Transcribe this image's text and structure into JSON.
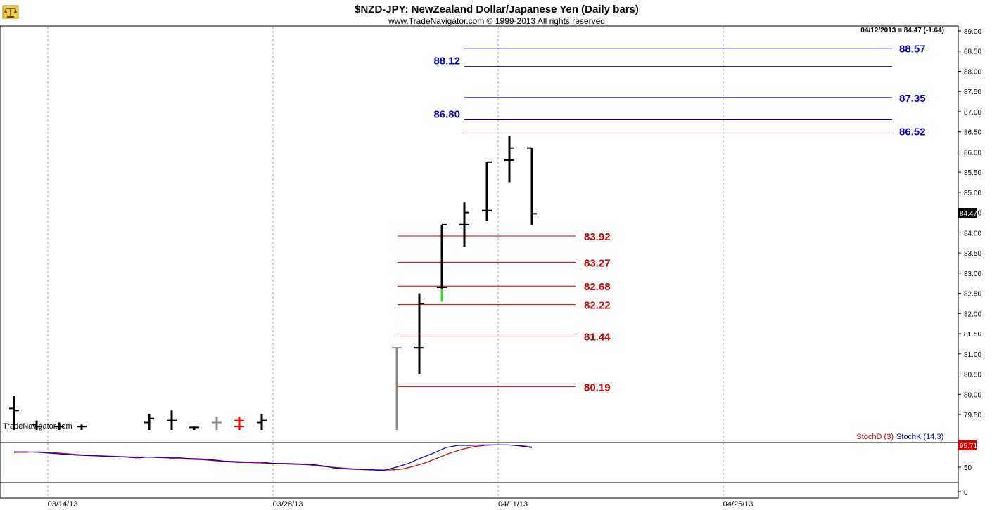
{
  "header": {
    "title": "$NZD-JPY:  NewZealand Dollar/Japanese Yen  (Daily bars)",
    "subtitle": "www.TradeNavigator.com © 1999-2013 All rights reserved",
    "watermark": "TradeNavigator.com",
    "logo_icon": "scale-icon"
  },
  "price_readout": "04/12/2013 = 84.47 (-1.64)",
  "last_price_tag": "84.47",
  "stoch_readout": "95.71",
  "chart_data": {
    "type": "ohlc",
    "price_panel": {
      "ylim": [
        79.1,
        89.1
      ],
      "yticks": [
        "89.00",
        "88.50",
        "88.00",
        "87.50",
        "87.00",
        "86.50",
        "86.00",
        "85.50",
        "85.00",
        "84.50",
        "84.00",
        "83.50",
        "83.00",
        "82.50",
        "82.00",
        "81.50",
        "81.00",
        "80.50",
        "80.00",
        "79.50"
      ],
      "bars": [
        {
          "h": 79.95,
          "l": 79.1,
          "c": 79.6,
          "o": 79.65,
          "color": "#000000"
        },
        {
          "h": 79.35,
          "l": 79.1,
          "c": 79.2,
          "o": 79.25,
          "color": "#000000"
        },
        {
          "h": 79.3,
          "l": 79.1,
          "c": 79.2,
          "o": 79.2,
          "color": "#000000"
        },
        {
          "h": 79.25,
          "l": 79.15,
          "c": 79.2,
          "o": 79.2,
          "color": "#000000"
        },
        {
          "h": 79.45,
          "l": 79.2,
          "c": 79.2,
          "o": 79.2,
          "color": "#ff0000"
        },
        {
          "h": 79.5,
          "l": 79.1,
          "c": 79.4,
          "o": 79.3,
          "color": "#000000"
        },
        {
          "h": 79.6,
          "l": 79.1,
          "c": 79.35,
          "o": 79.35,
          "color": "#000000"
        },
        {
          "h": 79.2,
          "l": 79.15,
          "c": 79.18,
          "o": 79.18,
          "color": "#000000"
        },
        {
          "h": 79.45,
          "l": 79.1,
          "c": 79.3,
          "o": 79.3,
          "color": "#888888"
        },
        {
          "h": 79.4,
          "l": 79.1,
          "c": 79.35,
          "o": 79.35,
          "color": "#ff0000"
        },
        {
          "h": 79.5,
          "l": 79.1,
          "c": 79.35,
          "o": 79.3,
          "color": "#000000"
        },
        {
          "h": 81.15,
          "l": 79.1,
          "c": 81.15,
          "o": 81.15,
          "color": "#888888"
        },
        {
          "h": 81.15,
          "l": 80.5,
          "c": 81.15,
          "o": 81.15,
          "color": "#000000"
        },
        {
          "h": 82.5,
          "l": 80.5,
          "c": 82.25,
          "o": 81.15,
          "color": "#000000"
        },
        {
          "h": 82.7,
          "l": 82.35,
          "c": 82.65,
          "o": 82.65,
          "color": "#000000"
        },
        {
          "h": 84.2,
          "l": 82.3,
          "c": 84.2,
          "o": 82.65,
          "color": "#000000"
        },
        {
          "h": 84.2,
          "l": 83.65,
          "c": 84.2,
          "o": 84.2,
          "color": "#000000"
        },
        {
          "h": 84.75,
          "l": 83.65,
          "c": 84.5,
          "o": 84.2,
          "color": "#000000"
        },
        {
          "h": 84.55,
          "l": 84.3,
          "c": 84.55,
          "o": 84.55,
          "color": "#000000"
        },
        {
          "h": 85.75,
          "l": 84.3,
          "c": 85.75,
          "o": 84.55,
          "color": "#000000"
        },
        {
          "h": 85.8,
          "l": 85.8,
          "c": 85.8,
          "o": 85.8,
          "color": "#000000"
        },
        {
          "h": 86.4,
          "l": 85.25,
          "c": 86.1,
          "o": 85.8,
          "color": "#000000"
        },
        {
          "h": 86.1,
          "l": 84.2,
          "c": 84.47,
          "o": 86.1,
          "color": "#000000"
        }
      ],
      "resistance_levels": [
        "86.52",
        "86.80",
        "87.35",
        "88.12",
        "88.57"
      ],
      "support_levels": [
        "83.92",
        "83.27",
        "82.68",
        "82.22",
        "81.44",
        "80.19"
      ],
      "resistance_color": "#0000cc",
      "support_color": "#cc0000"
    },
    "stoch_panel": {
      "legend": [
        {
          "name": "StochD (3)",
          "color": "#cc0000"
        },
        {
          "name": "StochK (14,3)",
          "color": "#0000cc"
        }
      ],
      "ylim": [
        0,
        100
      ],
      "yticks": [
        "50",
        "0"
      ],
      "stoch_d": [
        82,
        82,
        83,
        82,
        80,
        78,
        76,
        75,
        74,
        73,
        72,
        72,
        71,
        70,
        68,
        67,
        66,
        64,
        62,
        60,
        60,
        59,
        58,
        57,
        56,
        55,
        52,
        50,
        48,
        46,
        45,
        44,
        44,
        46,
        52,
        60,
        70,
        80,
        88,
        94,
        97,
        98,
        98,
        97,
        93
      ],
      "stoch_k": [
        83,
        83,
        82,
        80,
        78,
        76,
        75,
        74,
        73,
        72,
        70,
        72,
        71,
        71,
        69,
        68,
        66,
        63,
        62,
        61,
        61,
        58,
        58,
        57,
        56,
        53,
        48,
        46,
        45,
        44,
        43,
        50,
        58,
        70,
        80,
        92,
        97,
        97,
        98,
        98,
        98,
        96,
        92
      ]
    },
    "x_tick_labels": [
      "03/14/13",
      "03/28/13",
      "04/11/13",
      "04/25/13"
    ]
  }
}
